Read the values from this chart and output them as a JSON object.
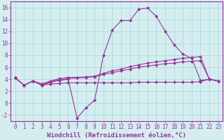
{
  "xlabel": "Windchill (Refroidissement éolien,°C)",
  "x": [
    0,
    1,
    2,
    3,
    4,
    5,
    6,
    7,
    8,
    9,
    10,
    11,
    12,
    13,
    14,
    15,
    16,
    17,
    18,
    19,
    20,
    21,
    22,
    23
  ],
  "line1": [
    4.2,
    3.0,
    3.7,
    3.0,
    3.5,
    3.8,
    4.0,
    -2.5,
    -0.8,
    0.5,
    8.0,
    12.2,
    13.8,
    13.8,
    15.7,
    15.9,
    14.5,
    12.0,
    9.8,
    8.2,
    7.5,
    3.8,
    4.0,
    3.7
  ],
  "line2": [
    4.2,
    3.0,
    3.7,
    3.2,
    3.7,
    4.1,
    4.3,
    4.3,
    4.4,
    4.5,
    5.0,
    5.4,
    5.7,
    6.1,
    6.4,
    6.7,
    6.9,
    7.1,
    7.3,
    7.5,
    7.6,
    7.8,
    4.0,
    3.7
  ],
  "line3": [
    4.2,
    3.0,
    3.7,
    3.2,
    3.6,
    3.9,
    4.1,
    4.2,
    4.3,
    4.4,
    4.8,
    5.1,
    5.4,
    5.7,
    6.0,
    6.2,
    6.4,
    6.6,
    6.7,
    6.9,
    7.0,
    7.1,
    4.0,
    3.7
  ],
  "line4": [
    4.2,
    3.0,
    3.7,
    3.0,
    3.2,
    3.3,
    3.4,
    3.4,
    3.4,
    3.4,
    3.4,
    3.4,
    3.4,
    3.4,
    3.5,
    3.5,
    3.5,
    3.5,
    3.5,
    3.5,
    3.5,
    3.6,
    4.0,
    3.7
  ],
  "line_color": "#993399",
  "bg_color": "#d4eef0",
  "grid_color": "#a8d4d8",
  "ylim": [
    -3.0,
    17.0
  ],
  "yticks": [
    -2,
    0,
    2,
    4,
    6,
    8,
    10,
    12,
    14,
    16
  ],
  "tick_fontsize": 5.5,
  "label_fontsize": 6.5
}
